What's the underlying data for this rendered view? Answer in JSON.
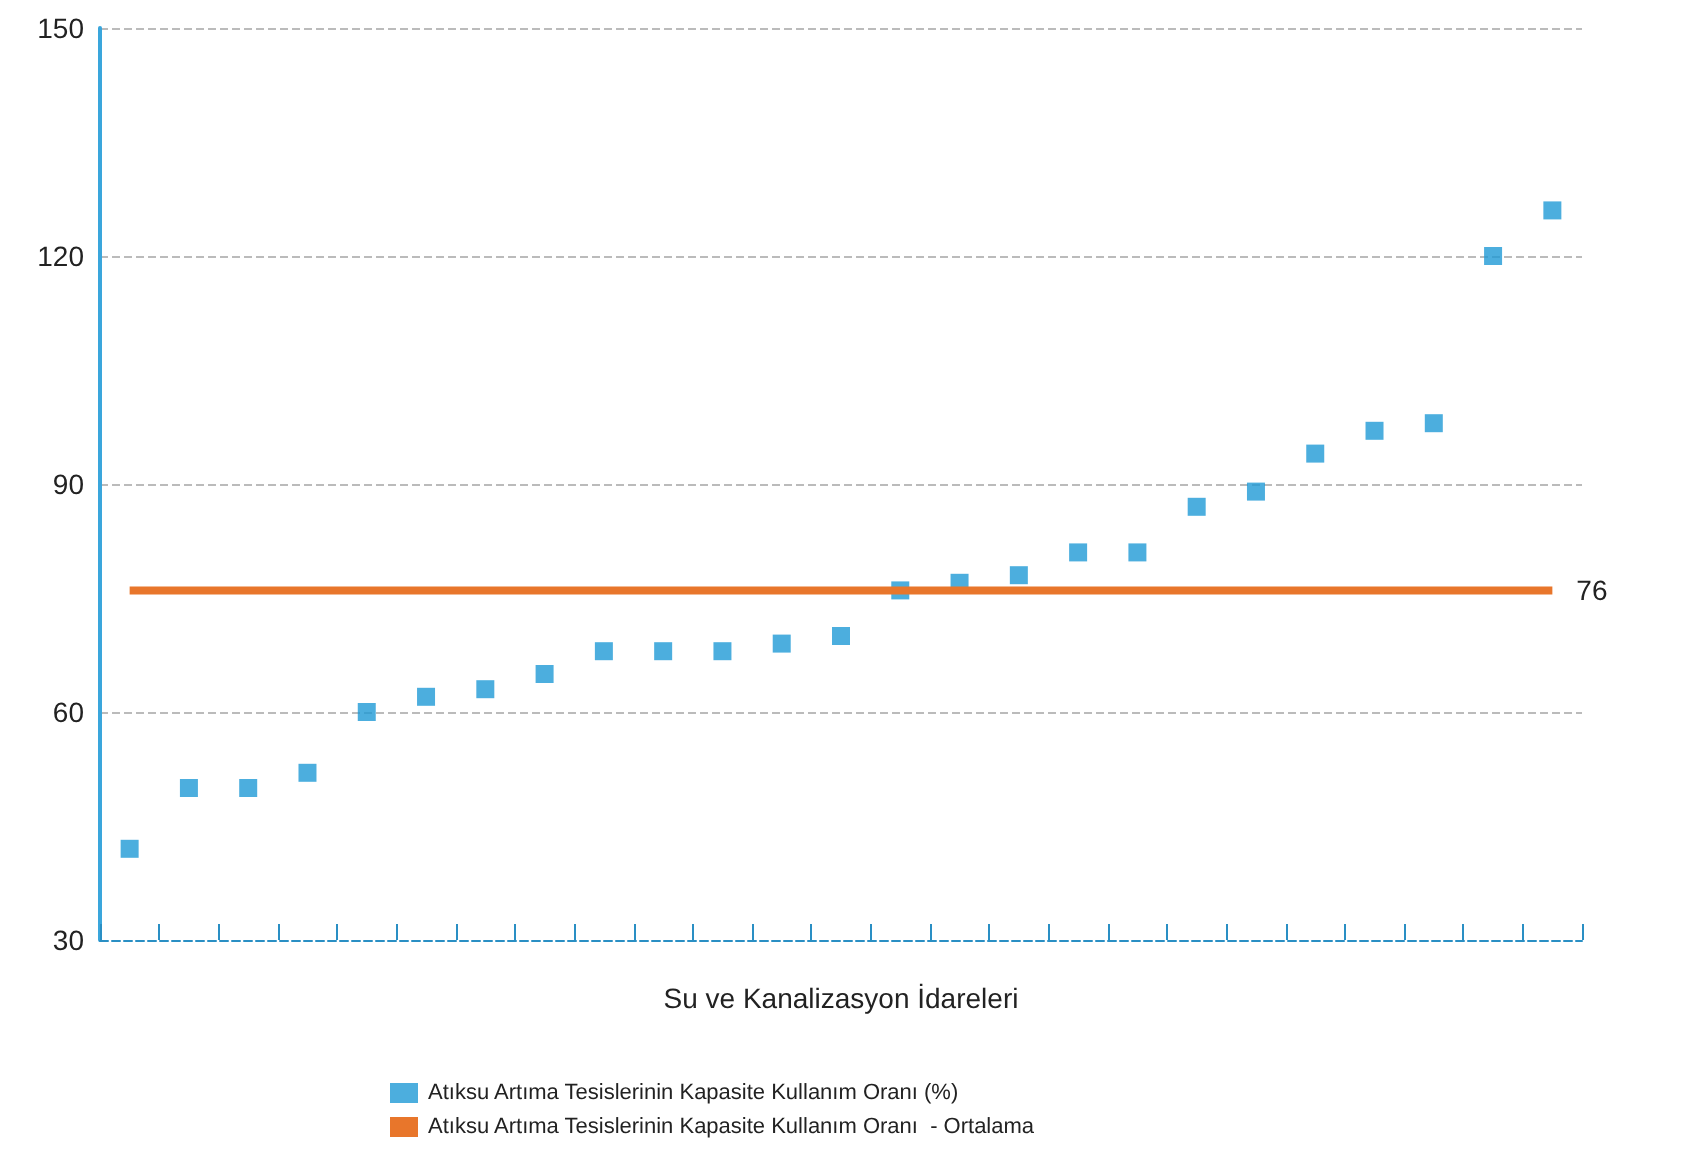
{
  "chart_data": {
    "type": "scatter",
    "xlabel": "Su ve Kanalizasyon İdareleri",
    "categories": [
      null,
      null,
      null,
      null,
      null,
      null,
      null,
      null,
      null,
      null,
      null,
      null,
      null,
      null,
      null,
      null,
      null,
      null,
      null,
      null,
      null,
      null,
      null,
      null,
      null
    ],
    "series": [
      {
        "name": "Atıksu Artıma Tesislerinin Kapasite Kullanım Oranı (%)",
        "marker": "square",
        "color": "#1f9ad6",
        "values": [
          42,
          50,
          50,
          52,
          60,
          62,
          63,
          65,
          68,
          68,
          68,
          69,
          70,
          76,
          77,
          78,
          81,
          81,
          87,
          89,
          94,
          97,
          98,
          120,
          126
        ]
      },
      {
        "name": "Atıksu Artıma Tesislerinin Kapasite Kullanım Oranı  - Ortalama",
        "type": "line",
        "marker": "none",
        "line_style": "solid",
        "color": "#e8762b",
        "values": [
          76,
          76,
          76,
          76,
          76,
          76,
          76,
          76,
          76,
          76,
          76,
          76,
          76,
          76,
          76,
          76,
          76,
          76,
          76,
          76,
          76,
          76,
          76,
          76,
          76
        ],
        "value_labels": [
          null,
          null,
          null,
          null,
          null,
          null,
          null,
          null,
          null,
          null,
          null,
          null,
          null,
          null,
          null,
          null,
          null,
          null,
          null,
          null,
          null,
          null,
          null,
          null,
          "76"
        ]
      }
    ],
    "ylim": [
      30,
      150
    ],
    "yticks": [
      30,
      60,
      90,
      120,
      150
    ],
    "grid": "y",
    "legend": "bottom left"
  }
}
